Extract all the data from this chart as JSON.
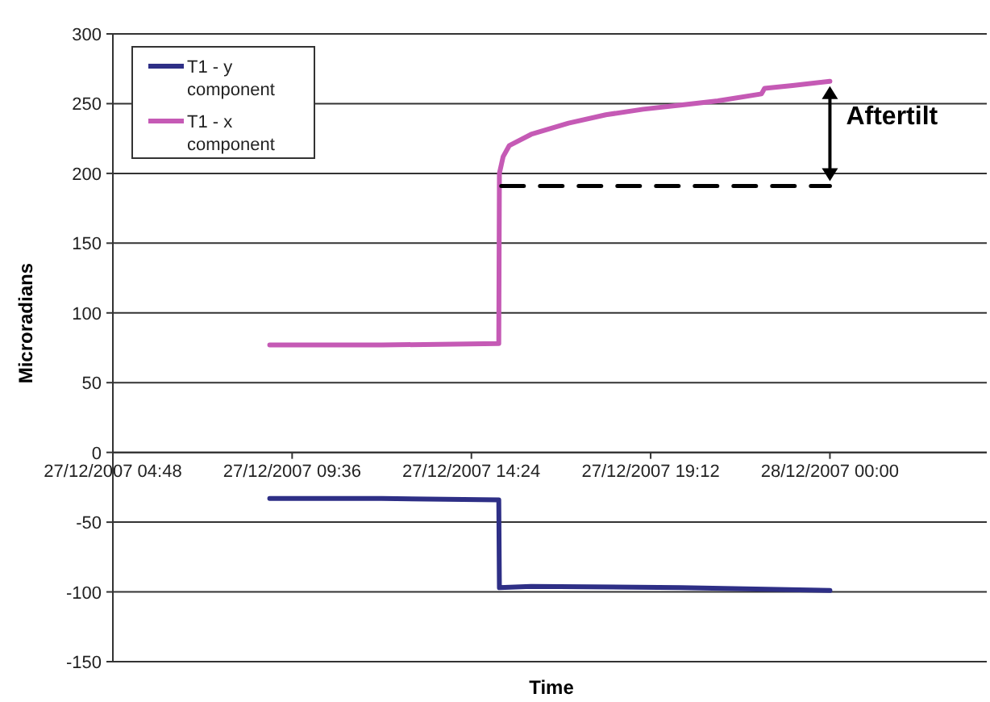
{
  "chart_data": {
    "type": "line",
    "xlabel": "Time",
    "ylabel": "Microradians",
    "xlim": [
      "2007-12-27T04:48",
      "2007-12-28T04:12"
    ],
    "xticks": [
      {
        "value": "2007-12-27T04:48",
        "label": "27/12/2007 04:48"
      },
      {
        "value": "2007-12-27T09:36",
        "label": "27/12/2007 09:36"
      },
      {
        "value": "2007-12-27T14:24",
        "label": "27/12/2007 14:24"
      },
      {
        "value": "2007-12-27T19:12",
        "label": "27/12/2007 19:12"
      },
      {
        "value": "2007-12-28T00:00",
        "label": "28/12/2007 00:00"
      }
    ],
    "ylim": [
      -150,
      300
    ],
    "yticks": [
      -150,
      -100,
      -50,
      0,
      50,
      100,
      150,
      200,
      250,
      300
    ],
    "grid": "y",
    "legend": "top left",
    "line_style": "solid",
    "marker": "none",
    "series": [
      {
        "name": "T1 - y component",
        "color": "#2e2f86",
        "x": [
          "2007-12-27T09:00",
          "2007-12-27T12:00",
          "2007-12-27T15:08",
          "2007-12-27T15:09",
          "2007-12-27T16:00",
          "2007-12-27T20:00",
          "2007-12-28T00:00"
        ],
        "values": [
          -33,
          -33,
          -34,
          -97,
          -96,
          -97,
          -99
        ]
      },
      {
        "name": "T1 - x component",
        "color": "#c55ab5",
        "x": [
          "2007-12-27T09:00",
          "2007-12-27T12:00",
          "2007-12-27T15:08",
          "2007-12-27T15:09",
          "2007-12-27T15:15",
          "2007-12-27T15:25",
          "2007-12-27T16:00",
          "2007-12-27T17:00",
          "2007-12-27T18:00",
          "2007-12-27T19:00",
          "2007-12-27T20:00",
          "2007-12-27T21:00",
          "2007-12-27T22:10",
          "2007-12-27T22:15",
          "2007-12-27T23:00",
          "2007-12-28T00:00"
        ],
        "values": [
          77,
          77,
          78,
          200,
          212,
          220,
          228,
          236,
          242,
          246,
          249,
          252,
          257,
          261,
          263,
          266
        ]
      },
      {
        "color": "#000000",
        "line_style": "dashed",
        "x": [
          "2007-12-27T15:12",
          "2007-12-28T00:00"
        ],
        "values": [
          191,
          191
        ]
      }
    ],
    "annotations": [
      "Aftertilt"
    ]
  }
}
